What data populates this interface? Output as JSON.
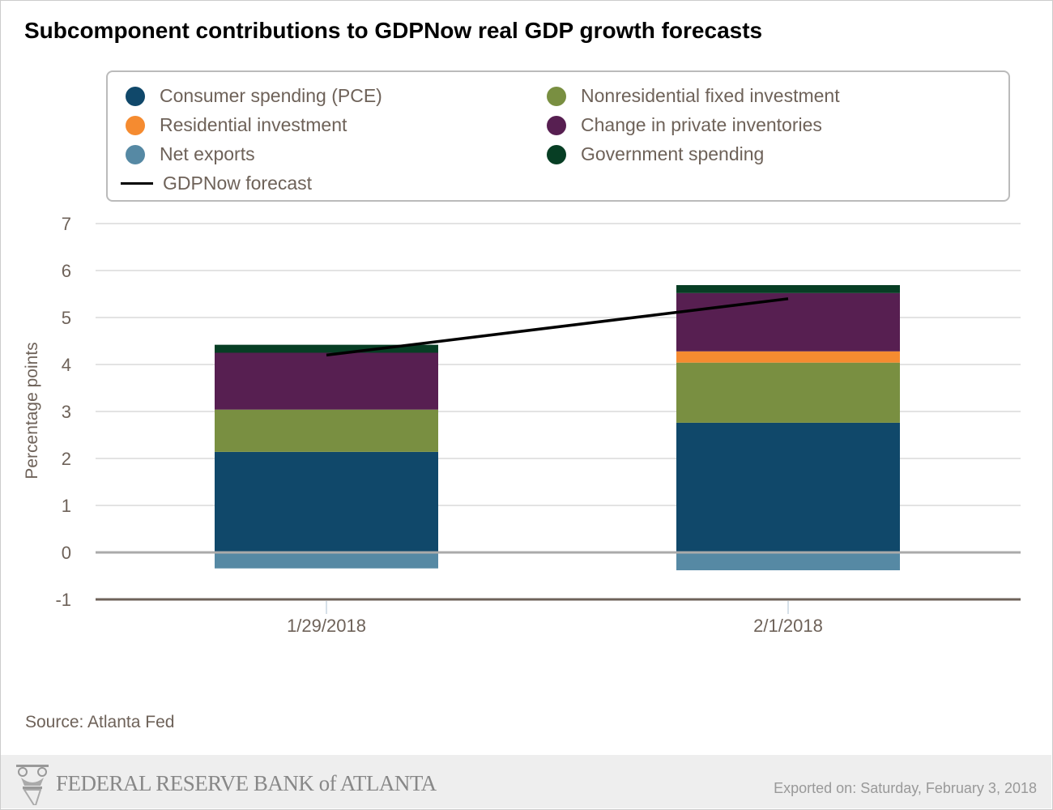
{
  "chart_data": {
    "type": "bar",
    "stacked": true,
    "title": "Subcomponent contributions to GDPNow real GDP growth forecasts",
    "ylabel": "Percentage points",
    "xlabel": "",
    "ylim": [
      -1,
      7
    ],
    "yticks": [
      -1,
      0,
      1,
      2,
      3,
      4,
      5,
      6,
      7
    ],
    "grid": true,
    "legend_position": "top",
    "categories": [
      "1/29/2018",
      "2/1/2018"
    ],
    "series": [
      {
        "name": "Consumer spending (PCE)",
        "color": "#10486a",
        "values": [
          2.14,
          2.76
        ]
      },
      {
        "name": "Nonresidential fixed investment",
        "color": "#798f41",
        "values": [
          0.9,
          1.28
        ]
      },
      {
        "name": "Residential investment",
        "color": "#f58b30",
        "values": [
          0.0,
          0.24
        ]
      },
      {
        "name": "Change in private inventories",
        "color": "#571f51",
        "values": [
          1.21,
          1.24
        ]
      },
      {
        "name": "Government spending",
        "color": "#073e24",
        "values": [
          0.17,
          0.17
        ]
      },
      {
        "name": "Net exports",
        "color": "#5689a4",
        "values": [
          -0.34,
          -0.38
        ]
      }
    ],
    "line": {
      "name": "GDPNow forecast",
      "color": "#000000",
      "values": [
        4.2,
        5.4
      ]
    }
  },
  "legend": [
    {
      "label": "Consumer spending (PCE)",
      "color": "#10486a"
    },
    {
      "label": "Nonresidential fixed investment",
      "color": "#798f41"
    },
    {
      "label": "Residential investment",
      "color": "#f58b30"
    },
    {
      "label": "Change in private inventories",
      "color": "#571f51"
    },
    {
      "label": "Net exports",
      "color": "#5689a4"
    },
    {
      "label": "Government spending",
      "color": "#073e24"
    },
    {
      "label": "GDPNow forecast",
      "color": "#000000"
    }
  ],
  "source": "Source: Atlanta Fed",
  "footer": {
    "logo_text": "FEDERAL RESERVE BANK of ATLANTA",
    "exported": "Exported on: Saturday, February 3, 2018"
  }
}
